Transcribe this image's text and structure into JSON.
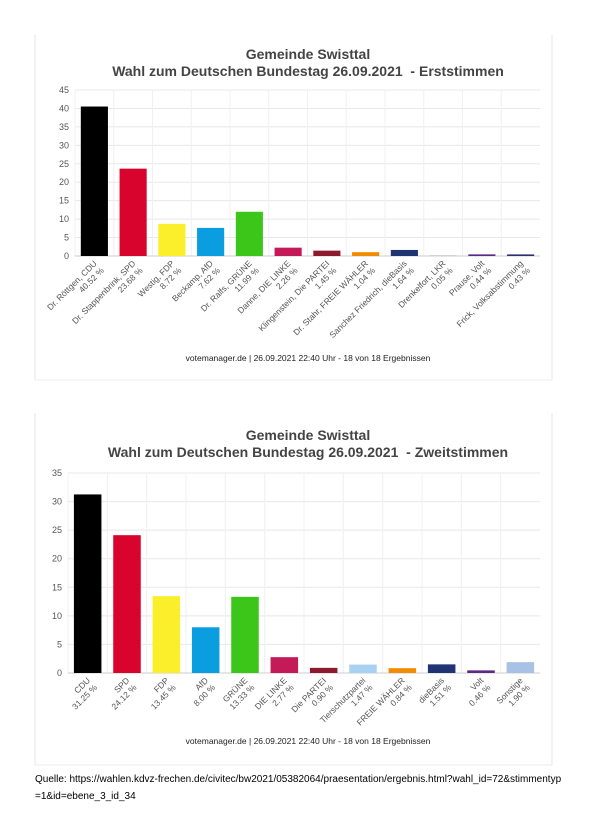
{
  "chart_data": [
    {
      "type": "bar",
      "title": "Gemeinde Swisttal",
      "subtitle": "Wahl zum Deutschen Bundestag 26.09.2021  - Erststimmen",
      "categories": [
        "Dr. Röttgen, CDU",
        "Dr. Stappenbrink, SPD",
        "Westig, FDP",
        "Beckamp, AfD",
        "Dr. Ralfs, GRÜNE",
        "Danne, DIE LINKE",
        "Klingenstein, Die PARTEI",
        "Dr. Stahr, FREIE WÄHLER",
        "Sanchez Friedrich, dieBasis",
        "Drenkelfort, LKR",
        "Prause, Volt",
        "Frick, Volksabstimmung"
      ],
      "values": [
        40.52,
        23.68,
        8.72,
        7.62,
        11.99,
        2.26,
        1.45,
        1.04,
        1.64,
        0.05,
        0.44,
        0.43
      ],
      "value_labels": [
        "40.52 %",
        "23.68 %",
        "8.72 %",
        "7.62 %",
        "11.99 %",
        "2.26 %",
        "1.45 %",
        "1.04 %",
        "1.64 %",
        "0.05 %",
        "0.44 %",
        "0.43 %"
      ],
      "colors": [
        "#000000",
        "#d8042e",
        "#fbee2b",
        "#0a9de0",
        "#3cc61a",
        "#c41a58",
        "#8c1a2c",
        "#f28b00",
        "#1e3473",
        "#7a5aa0",
        "#5a2a86",
        "#2e2e6e"
      ],
      "ylim": [
        0,
        45
      ],
      "yticks": [
        0,
        5,
        10,
        15,
        20,
        25,
        30,
        35,
        40,
        45
      ],
      "grid": true,
      "footer": "votemanager.de | 26.09.2021 22:40 Uhr - 18 von 18 Ergebnissen"
    },
    {
      "type": "bar",
      "title": "Gemeinde Swisttal",
      "subtitle": "Wahl zum Deutschen Bundestag 26.09.2021  - Zweitstimmen",
      "categories": [
        "CDU",
        "SPD",
        "FDP",
        "AfD",
        "GRÜNE",
        "DIE LINKE",
        "Die PARTEI",
        "Tierschutzpartei",
        "FREIE WÄHLER",
        "dieBasis",
        "Volt",
        "Sonstige"
      ],
      "values": [
        31.25,
        24.12,
        13.45,
        8.0,
        13.33,
        2.77,
        0.9,
        1.47,
        0.84,
        1.51,
        0.46,
        1.9
      ],
      "value_labels": [
        "31.25 %",
        "24.12 %",
        "13.45 %",
        "8.00 %",
        "13.33 %",
        "2.77 %",
        "0.90 %",
        "1.47 %",
        "0.84 %",
        "1.51 %",
        "0.46 %",
        "1.90 %"
      ],
      "colors": [
        "#000000",
        "#d8042e",
        "#fbee2b",
        "#0a9de0",
        "#3cc61a",
        "#c41a58",
        "#8c1a2c",
        "#a9d2f2",
        "#f28b00",
        "#1e3473",
        "#5a2a86",
        "#a8c2e6"
      ],
      "ylim": [
        0,
        35
      ],
      "yticks": [
        0,
        5,
        10,
        15,
        20,
        25,
        30,
        35
      ],
      "grid": true,
      "footer": "votemanager.de | 26.09.2021 22:40 Uhr - 18 von 18 Ergebnissen"
    }
  ],
  "source": "Quelle: https://wahlen.kdvz-frechen.de/civitec/bw2021/05382064/praesentation/ergebnis.html?wahl_id=72&stimmentyp=1&id=ebene_3_id_34"
}
